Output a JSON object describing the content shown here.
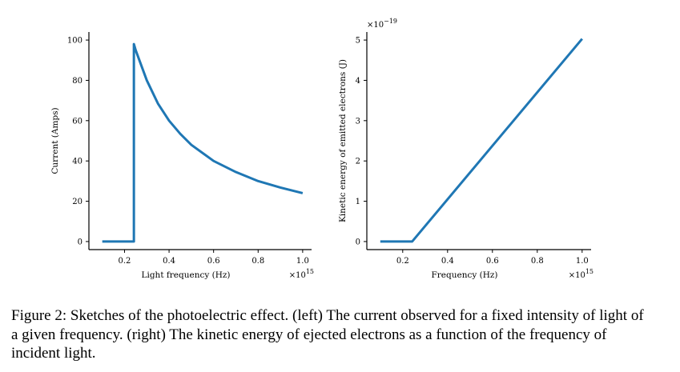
{
  "chart_data": [
    {
      "type": "line",
      "title": "",
      "xlabel": "Light frequency (Hz)",
      "ylabel": "Current (Amps)",
      "x_multiplier": "×10",
      "x_multiplier_exp": "15",
      "xlim": [
        0.04,
        1.04
      ],
      "ylim": [
        -4,
        104
      ],
      "xticks": [
        0.2,
        0.4,
        0.6,
        0.8,
        1.0
      ],
      "xtick_labels": [
        "0.2",
        "0.4",
        "0.6",
        "0.8",
        "1.0"
      ],
      "yticks": [
        0,
        20,
        40,
        60,
        80,
        100
      ],
      "ytick_labels": [
        "0",
        "20",
        "40",
        "60",
        "80",
        "100"
      ],
      "grid": false,
      "color": "#1f77b4",
      "series": [
        {
          "x": [
            0.1,
            0.242,
            0.242,
            0.25,
            0.3,
            0.35,
            0.4,
            0.45,
            0.5,
            0.6,
            0.7,
            0.8,
            0.9,
            1.0
          ],
          "y": [
            0,
            0,
            98,
            95,
            80,
            68.5,
            60,
            53.5,
            48,
            40,
            34.5,
            30,
            26.8,
            24
          ]
        }
      ]
    },
    {
      "type": "line",
      "title": "",
      "xlabel": "Frequency (Hz)",
      "ylabel": "Kinetic energy of emitted electrons (J)",
      "x_multiplier": "×10",
      "x_multiplier_exp": "15",
      "y_multiplier": "×10",
      "y_multiplier_exp": "−19",
      "xlim": [
        0.04,
        1.04
      ],
      "ylim": [
        -0.2,
        5.2
      ],
      "xticks": [
        0.2,
        0.4,
        0.6,
        0.8,
        1.0
      ],
      "xtick_labels": [
        "0.2",
        "0.4",
        "0.6",
        "0.8",
        "1.0"
      ],
      "yticks": [
        0,
        1,
        2,
        3,
        4,
        5
      ],
      "ytick_labels": [
        "0",
        "1",
        "2",
        "3",
        "4",
        "5"
      ],
      "grid": false,
      "color": "#1f77b4",
      "series": [
        {
          "x": [
            0.1,
            0.242,
            1.0
          ],
          "y": [
            0,
            0,
            5.03
          ]
        }
      ]
    }
  ],
  "caption": "Figure 2:  Sketches of the photoelectric effect.  (left) The current observed for a fixed intensity of light of a given frequency. (right) The kinetic energy of ejected electrons as a function of the frequency of incident light."
}
